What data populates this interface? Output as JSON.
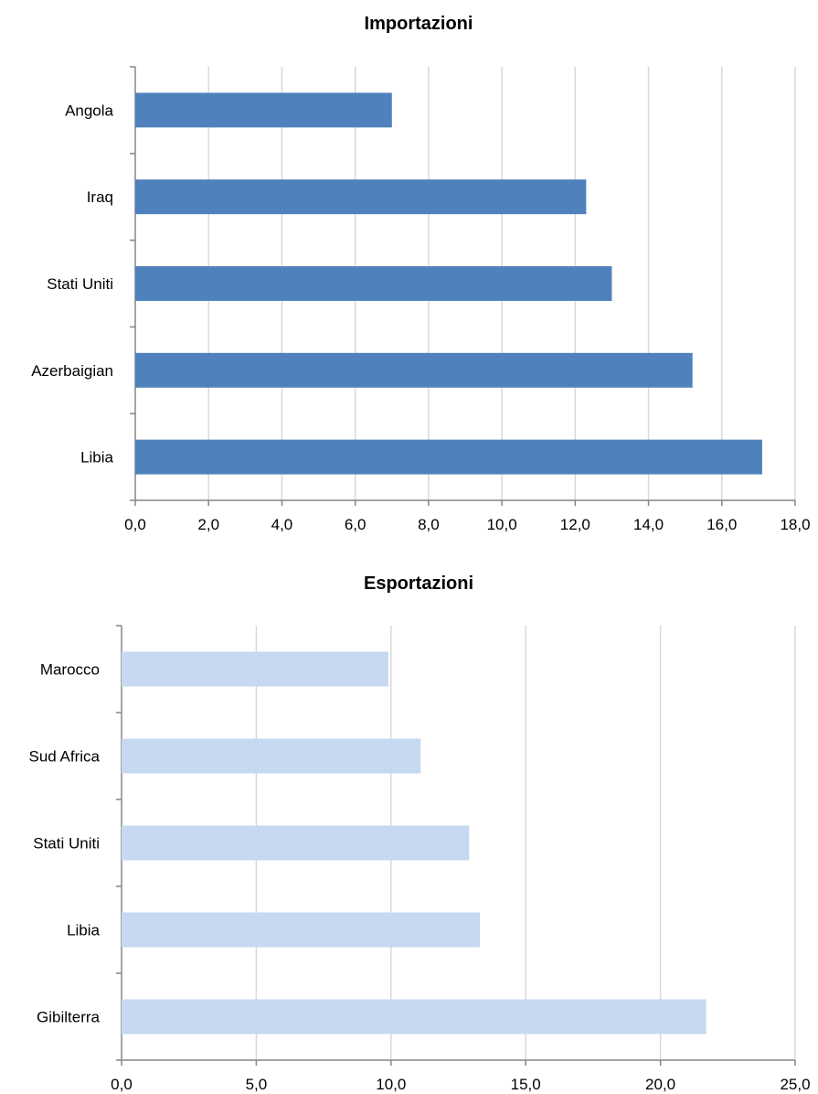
{
  "chart_data": [
    {
      "type": "bar",
      "orientation": "horizontal",
      "title": "Importazioni",
      "categories": [
        "Angola",
        "Iraq",
        "Stati Uniti",
        "Azerbaigian",
        "Libia"
      ],
      "values": [
        7.0,
        12.3,
        13.0,
        15.2,
        17.1
      ],
      "xlim": [
        0,
        18
      ],
      "ticks": [
        "0,0",
        "2,0",
        "4,0",
        "6,0",
        "8,0",
        "10,0",
        "12,0",
        "14,0",
        "16,0",
        "18,0"
      ],
      "tick_values": [
        0,
        2,
        4,
        6,
        8,
        10,
        12,
        14,
        16,
        18
      ],
      "bar_color": "#4f81bd",
      "grid": true,
      "legend": "none"
    },
    {
      "type": "bar",
      "orientation": "horizontal",
      "title": "Esportazioni",
      "categories": [
        "Marocco",
        "Sud Africa",
        "Stati Uniti",
        "Libia",
        "Gibilterra"
      ],
      "values": [
        9.9,
        11.1,
        12.9,
        13.3,
        21.7
      ],
      "xlim": [
        0,
        25
      ],
      "ticks": [
        "0,0",
        "5,0",
        "10,0",
        "15,0",
        "20,0",
        "25,0"
      ],
      "tick_values": [
        0,
        5,
        10,
        15,
        20,
        25
      ],
      "bar_color": "#c6d9f1",
      "grid": true,
      "legend": "none"
    }
  ]
}
